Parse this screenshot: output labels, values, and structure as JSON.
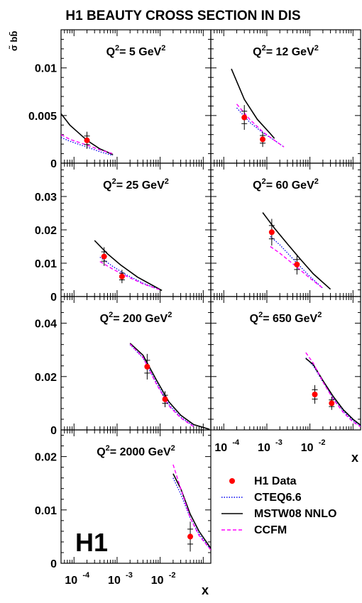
{
  "figure": {
    "title": "H1 BEAUTY CROSS SECTION IN DIS",
    "ylabel": "σ̃ bb̄",
    "xlabel": "x",
    "logo": "H1",
    "legend": [
      {
        "label": "H1 Data",
        "style": "marker",
        "color": "#ff0000"
      },
      {
        "label": "CTEQ6.6",
        "style": "dotted",
        "color": "#0000ee"
      },
      {
        "label": "MSTW08 NNLO",
        "style": "solid",
        "color": "#000000"
      },
      {
        "label": "CCFM",
        "style": "dashed",
        "color": "#ff00ff"
      }
    ],
    "colors": {
      "data": "#ff0000",
      "cteq": "#0000ee",
      "mstw": "#000000",
      "ccfm": "#ff00ff"
    },
    "x_ticks": [
      "10",
      "10",
      "10"
    ],
    "x_tick_exponents": [
      "-4",
      "-3",
      "-2"
    ]
  },
  "chart_data": [
    {
      "type": "scatter",
      "panel": "Q2 = 5 GeV2",
      "label_base": "Q",
      "label_exp": "2",
      "label_value": "= 5 GeV",
      "label_unit_exp": "2",
      "xscale": "log",
      "xlim": [
        5e-05,
        0.15
      ],
      "ylim": [
        0,
        0.014
      ],
      "y_ticks": [
        {
          "v": 0,
          "t": "0"
        },
        {
          "v": 0.005,
          "t": "0.005"
        },
        {
          "v": 0.01,
          "t": "0.01"
        }
      ],
      "series": [
        {
          "name": "H1 Data",
          "points": [
            {
              "x": 0.0002,
              "y": 0.0024,
              "err": 0.0009
            }
          ]
        },
        {
          "name": "CTEQ6.6",
          "x": [
            5e-05,
            8e-05,
            0.0002,
            0.0004,
            0.0008
          ],
          "y": [
            0.0027,
            0.0023,
            0.0017,
            0.0012,
            0.0008
          ]
        },
        {
          "name": "MSTW08 NNLO",
          "x": [
            5e-05,
            8e-05,
            0.0002,
            0.0004,
            0.0008
          ],
          "y": [
            0.0052,
            0.004,
            0.0024,
            0.0015,
            0.0009
          ]
        },
        {
          "name": "CCFM",
          "x": [
            5e-05,
            8e-05,
            0.0002,
            0.0004,
            0.0008
          ],
          "y": [
            0.003,
            0.0025,
            0.0019,
            0.0014,
            0.001
          ]
        }
      ]
    },
    {
      "type": "scatter",
      "panel": "Q2 = 12 GeV2",
      "label_base": "Q",
      "label_exp": "2",
      "label_value": "= 12 GeV",
      "label_unit_exp": "2",
      "xscale": "log",
      "xlim": [
        5e-05,
        0.15
      ],
      "ylim": [
        0,
        0.014
      ],
      "y_ticks": [
        {
          "v": 0,
          "t": "0"
        },
        {
          "v": 0.005,
          "t": "0.005"
        },
        {
          "v": 0.01,
          "t": "0.01"
        }
      ],
      "series": [
        {
          "name": "H1 Data",
          "points": [
            {
              "x": 0.0003,
              "y": 0.0048,
              "err": 0.0013
            },
            {
              "x": 0.0008,
              "y": 0.0025,
              "err": 0.0008
            }
          ]
        },
        {
          "name": "CTEQ6.6",
          "x": [
            0.0002,
            0.0004,
            0.0008,
            0.0015,
            0.0025
          ],
          "y": [
            0.0058,
            0.0043,
            0.0032,
            0.0024,
            0.0017
          ]
        },
        {
          "name": "MSTW08 NNLO",
          "x": [
            0.00015,
            0.0003,
            0.0006,
            0.0012,
            0.0015
          ],
          "y": [
            0.0099,
            0.0067,
            0.0046,
            0.0031,
            0.0026
          ]
        },
        {
          "name": "CCFM",
          "x": [
            0.0002,
            0.0004,
            0.0008,
            0.0015,
            0.0025
          ],
          "y": [
            0.0062,
            0.0046,
            0.0033,
            0.0024,
            0.0017
          ]
        }
      ]
    },
    {
      "type": "scatter",
      "panel": "Q2 = 25 GeV2",
      "label_base": "Q",
      "label_exp": "2",
      "label_value": "= 25 GeV",
      "label_unit_exp": "2",
      "xscale": "log",
      "xlim": [
        5e-05,
        0.15
      ],
      "ylim": [
        0,
        0.04
      ],
      "y_ticks": [
        {
          "v": 0,
          "t": "0"
        },
        {
          "v": 0.01,
          "t": "0.01"
        },
        {
          "v": 0.02,
          "t": "0.02"
        },
        {
          "v": 0.03,
          "t": "0.03"
        }
      ],
      "series": [
        {
          "name": "H1 Data",
          "points": [
            {
              "x": 0.0005,
              "y": 0.012,
              "err": 0.0028
            },
            {
              "x": 0.0013,
              "y": 0.006,
              "err": 0.002
            }
          ]
        },
        {
          "name": "CTEQ6.6",
          "x": [
            0.0004,
            0.0008,
            0.0016,
            0.004,
            0.01
          ],
          "y": [
            0.0118,
            0.009,
            0.0066,
            0.004,
            0.002
          ]
        },
        {
          "name": "MSTW08 NNLO",
          "x": [
            0.0003,
            0.0006,
            0.0012,
            0.003,
            0.011
          ],
          "y": [
            0.0168,
            0.0128,
            0.0095,
            0.0058,
            0.0018
          ]
        },
        {
          "name": "CCFM",
          "x": [
            0.0004,
            0.0008,
            0.0016,
            0.004,
            0.01
          ],
          "y": [
            0.0105,
            0.0082,
            0.0062,
            0.0038,
            0.002
          ]
        }
      ]
    },
    {
      "type": "scatter",
      "panel": "Q2 = 60 GeV2",
      "label_base": "Q",
      "label_exp": "2",
      "label_value": "= 60 GeV",
      "label_unit_exp": "2",
      "xscale": "log",
      "xlim": [
        5e-05,
        0.15
      ],
      "ylim": [
        0,
        0.04
      ],
      "y_ticks": [
        {
          "v": 0,
          "t": "0"
        },
        {
          "v": 0.01,
          "t": "0.01"
        },
        {
          "v": 0.02,
          "t": "0.02"
        },
        {
          "v": 0.03,
          "t": "0.03"
        }
      ],
      "series": [
        {
          "name": "H1 Data",
          "points": [
            {
              "x": 0.0013,
              "y": 0.0193,
              "err": 0.004
            },
            {
              "x": 0.005,
              "y": 0.0096,
              "err": 0.003
            }
          ]
        },
        {
          "name": "CTEQ6.6",
          "x": [
            0.0012,
            0.002,
            0.005,
            0.01,
            0.02
          ],
          "y": [
            0.018,
            0.0155,
            0.01,
            0.006,
            0.0025
          ]
        },
        {
          "name": "MSTW08 NNLO",
          "x": [
            0.0008,
            0.0015,
            0.003,
            0.006,
            0.012,
            0.03
          ],
          "y": [
            0.0252,
            0.0205,
            0.0158,
            0.0112,
            0.0068,
            0.0022
          ]
        },
        {
          "name": "CCFM",
          "x": [
            0.0012,
            0.002,
            0.005,
            0.01,
            0.02
          ],
          "y": [
            0.015,
            0.013,
            0.0088,
            0.0055,
            0.0025
          ]
        }
      ]
    },
    {
      "type": "scatter",
      "panel": "Q2 = 200 GeV2",
      "label_base": "Q",
      "label_exp": "2",
      "label_value": "= 200 GeV",
      "label_unit_exp": "2",
      "xscale": "log",
      "xlim": [
        5e-05,
        0.15
      ],
      "ylim": [
        0,
        0.05
      ],
      "y_ticks": [
        {
          "v": 0,
          "t": "0"
        },
        {
          "v": 0.02,
          "t": "0.02"
        },
        {
          "v": 0.04,
          "t": "0.04"
        }
      ],
      "series": [
        {
          "name": "H1 Data",
          "points": [
            {
              "x": 0.005,
              "y": 0.0237,
              "err": 0.0048
            },
            {
              "x": 0.013,
              "y": 0.0115,
              "err": 0.003
            }
          ]
        },
        {
          "name": "CTEQ6.6",
          "x": [
            0.002,
            0.004,
            0.008,
            0.016,
            0.03,
            0.06
          ],
          "y": [
            0.032,
            0.027,
            0.018,
            0.0095,
            0.0048,
            0.0015
          ]
        },
        {
          "name": "MSTW08 NNLO",
          "x": [
            0.002,
            0.004,
            0.008,
            0.016,
            0.03,
            0.06,
            0.14
          ],
          "y": [
            0.0325,
            0.028,
            0.019,
            0.0105,
            0.0055,
            0.002,
            0.0002
          ]
        },
        {
          "name": "CCFM",
          "x": [
            0.002,
            0.004,
            0.008,
            0.016,
            0.03,
            0.06
          ],
          "y": [
            0.0322,
            0.0272,
            0.0175,
            0.009,
            0.0045,
            0.0012
          ]
        }
      ]
    },
    {
      "type": "scatter",
      "panel": "Q2 = 650 GeV2",
      "label_base": "Q",
      "label_exp": "2",
      "label_value": "= 650 GeV",
      "label_unit_exp": "2",
      "xscale": "log",
      "xlim": [
        5e-05,
        0.15
      ],
      "ylim": [
        0,
        0.05
      ],
      "y_ticks": [
        {
          "v": 0,
          "t": "0"
        },
        {
          "v": 0.02,
          "t": "0.02"
        },
        {
          "v": 0.04,
          "t": "0.04"
        }
      ],
      "series": [
        {
          "name": "H1 Data",
          "points": [
            {
              "x": 0.013,
              "y": 0.0133,
              "err": 0.0035
            },
            {
              "x": 0.032,
              "y": 0.01,
              "err": 0.0025
            }
          ]
        },
        {
          "name": "CTEQ6.6",
          "x": [
            0.008,
            0.012,
            0.02,
            0.035,
            0.06,
            0.1,
            0.15
          ],
          "y": [
            0.027,
            0.024,
            0.018,
            0.012,
            0.007,
            0.0035,
            0.0015
          ]
        },
        {
          "name": "MSTW08 NNLO",
          "x": [
            0.008,
            0.012,
            0.02,
            0.035,
            0.06,
            0.1,
            0.15
          ],
          "y": [
            0.0268,
            0.0245,
            0.0185,
            0.0125,
            0.0075,
            0.004,
            0.0018
          ]
        },
        {
          "name": "CCFM",
          "x": [
            0.008,
            0.012,
            0.02,
            0.035,
            0.06,
            0.1,
            0.15
          ],
          "y": [
            0.029,
            0.025,
            0.018,
            0.0115,
            0.0065,
            0.003,
            0.0012
          ]
        }
      ]
    },
    {
      "type": "scatter",
      "panel": "Q2 = 2000 GeV2",
      "label_base": "Q",
      "label_exp": "2",
      "label_value": "= 2000 GeV",
      "label_unit_exp": "2",
      "xscale": "log",
      "xlim": [
        5e-05,
        0.15
      ],
      "ylim": [
        0,
        0.025
      ],
      "y_ticks": [
        {
          "v": 0,
          "t": "0"
        },
        {
          "v": 0.01,
          "t": "0.01"
        },
        {
          "v": 0.02,
          "t": "0.02"
        }
      ],
      "series": [
        {
          "name": "H1 Data",
          "points": [
            {
              "x": 0.05,
              "y": 0.005,
              "err": 0.0028
            }
          ]
        },
        {
          "name": "CTEQ6.6",
          "x": [
            0.02,
            0.03,
            0.05,
            0.08,
            0.15
          ],
          "y": [
            0.016,
            0.013,
            0.0085,
            0.0055,
            0.0025
          ]
        },
        {
          "name": "MSTW08 NNLO",
          "x": [
            0.02,
            0.03,
            0.05,
            0.08,
            0.15
          ],
          "y": [
            0.0168,
            0.014,
            0.0092,
            0.006,
            0.0028
          ]
        },
        {
          "name": "CCFM",
          "x": [
            0.02,
            0.03,
            0.05,
            0.08,
            0.15
          ],
          "y": [
            0.0185,
            0.014,
            0.0085,
            0.0052,
            0.0025
          ]
        }
      ]
    }
  ]
}
